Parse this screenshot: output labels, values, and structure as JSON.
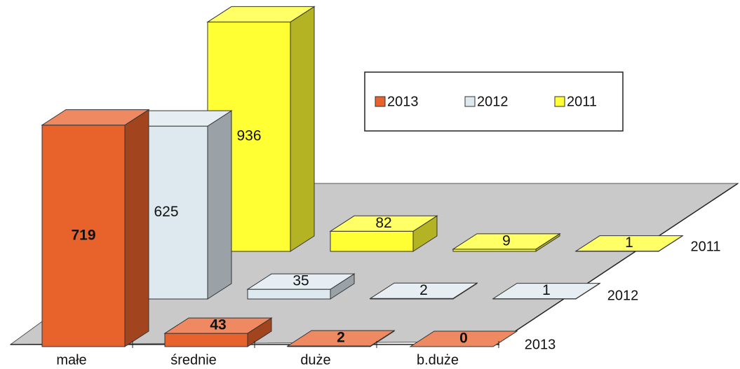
{
  "chart_data": {
    "type": "bar3d",
    "categories": [
      "małe",
      "średnie",
      "duże",
      "b.duże"
    ],
    "series": [
      {
        "name": "2013",
        "color": "#e8622c",
        "values": [
          719,
          43,
          2,
          0
        ]
      },
      {
        "name": "2012",
        "color": "#dde8ef",
        "values": [
          625,
          35,
          2,
          1
        ]
      },
      {
        "name": "2011",
        "color": "#ffff33",
        "values": [
          936,
          82,
          9,
          1
        ]
      }
    ]
  }
}
